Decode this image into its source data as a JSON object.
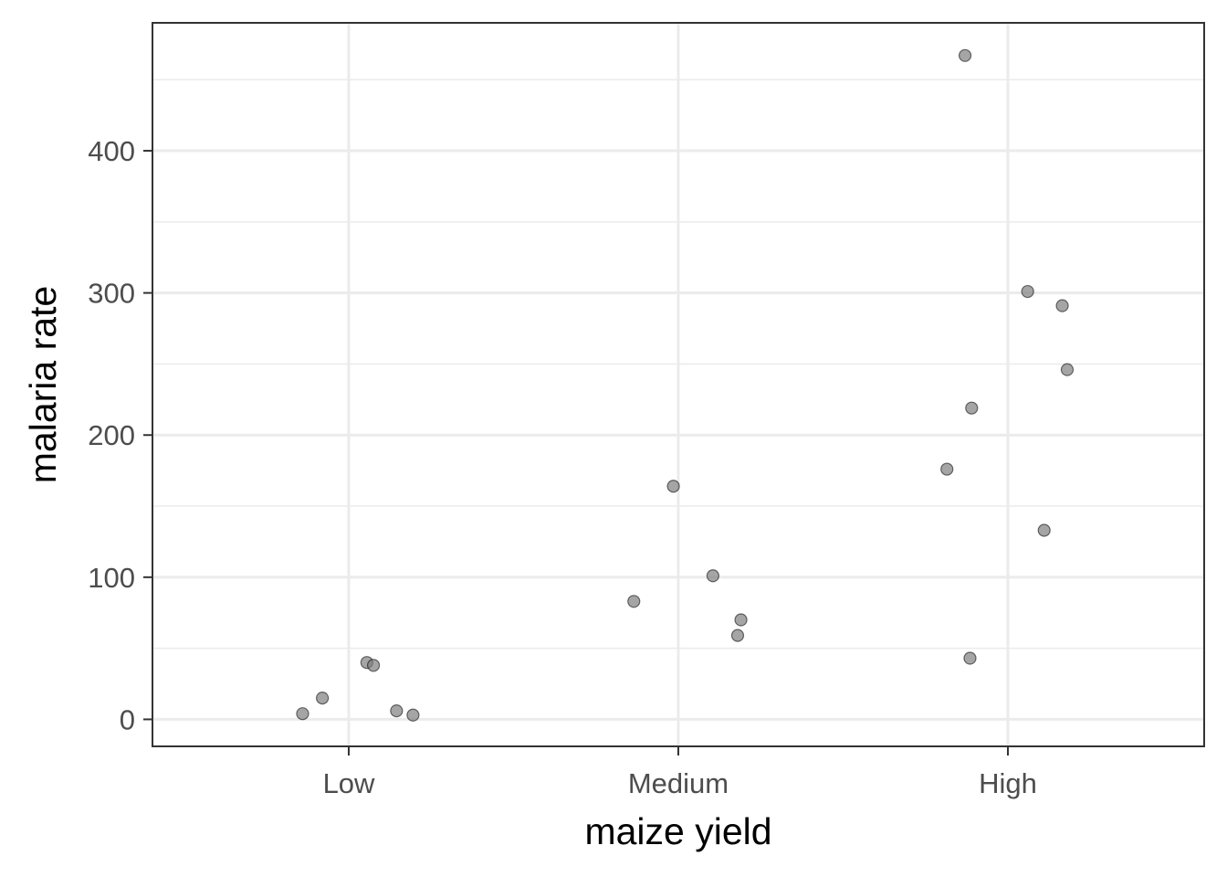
{
  "chart_data": {
    "type": "scatter",
    "title": "",
    "xlabel": "maize yield",
    "ylabel": "malaria rate",
    "categories": [
      "Low",
      "Medium",
      "High"
    ],
    "yticks": [
      0,
      100,
      200,
      300,
      400
    ],
    "ylim": [
      -19,
      490
    ],
    "grid": true,
    "legend": "none",
    "point_color": "#7f7f7f",
    "point_stroke": "#000000",
    "points": [
      {
        "category": "Low",
        "jitter": -0.14,
        "y": 4
      },
      {
        "category": "Low",
        "jitter": -0.08,
        "y": 15
      },
      {
        "category": "Low",
        "jitter": 0.055,
        "y": 40
      },
      {
        "category": "Low",
        "jitter": 0.075,
        "y": 38
      },
      {
        "category": "Low",
        "jitter": 0.145,
        "y": 6
      },
      {
        "category": "Low",
        "jitter": 0.195,
        "y": 3
      },
      {
        "category": "Medium",
        "jitter": -0.135,
        "y": 83
      },
      {
        "category": "Medium",
        "jitter": -0.015,
        "y": 164
      },
      {
        "category": "Medium",
        "jitter": 0.105,
        "y": 101
      },
      {
        "category": "Medium",
        "jitter": 0.18,
        "y": 59
      },
      {
        "category": "Medium",
        "jitter": 0.19,
        "y": 70
      },
      {
        "category": "High",
        "jitter": -0.185,
        "y": 176
      },
      {
        "category": "High",
        "jitter": -0.13,
        "y": 467
      },
      {
        "category": "High",
        "jitter": -0.115,
        "y": 43
      },
      {
        "category": "High",
        "jitter": -0.11,
        "y": 219
      },
      {
        "category": "High",
        "jitter": 0.06,
        "y": 301
      },
      {
        "category": "High",
        "jitter": 0.11,
        "y": 133
      },
      {
        "category": "High",
        "jitter": 0.165,
        "y": 291
      },
      {
        "category": "High",
        "jitter": 0.18,
        "y": 246
      }
    ]
  }
}
